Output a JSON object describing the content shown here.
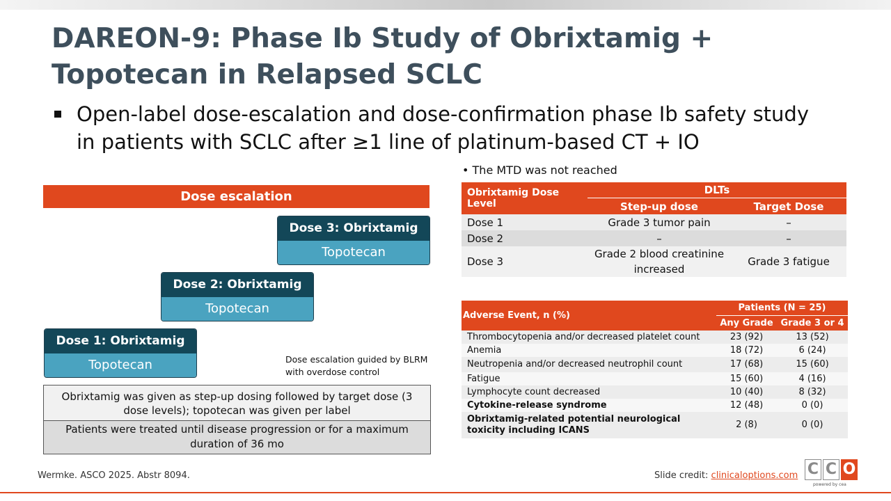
{
  "title": "DAREON-9: Phase Ib Study of Obrixtamig + Topotecan in Relapsed SCLC",
  "bullet": "Open-label dose-escalation and dose-confirmation phase Ib safety study in patients with SCLC after ≥1 line of platinum-based CT + IO",
  "dose_escalation": {
    "header": "Dose escalation",
    "levels": [
      {
        "top": "Dose 1: Obrixtamig",
        "bottom": "Topotecan"
      },
      {
        "top": "Dose 2: Obrixtamig",
        "bottom": "Topotecan"
      },
      {
        "top": "Dose 3: Obrixtamig",
        "bottom": "Topotecan"
      }
    ],
    "note": "Dose escalation guided by BLRM with overdose control",
    "info_row1": "Obrixtamig was given as step-up dosing followed by target dose (3 dose levels); topotecan was given per label",
    "info_row2": "Patients were treated until disease progression or for a maximum duration of 36 mo"
  },
  "mtd_note": "The MTD was not reached",
  "dlt_table": {
    "col_label": "Obrixtamig Dose Level",
    "group_header": "DLTs",
    "sub_headers": [
      "Step-up dose",
      "Target Dose"
    ],
    "rows": [
      {
        "level": "Dose 1",
        "stepup": "Grade 3 tumor pain",
        "target": "–"
      },
      {
        "level": "Dose 2",
        "stepup": "–",
        "target": "–"
      },
      {
        "level": "Dose 3",
        "stepup": "Grade 2 blood creatinine increased",
        "target": "Grade 3 fatigue"
      }
    ]
  },
  "ae_table": {
    "col_label": "Adverse Event, n (%)",
    "group_header": "Patients (N = 25)",
    "sub_headers": [
      "Any Grade",
      "Grade 3 or 4"
    ],
    "rows": [
      {
        "event": "Thrombocytopenia and/or decreased platelet count",
        "any": "23 (92)",
        "g34": "13 (52)"
      },
      {
        "event": "Anemia",
        "any": "18 (72)",
        "g34": "6 (24)"
      },
      {
        "event": "Neutropenia and/or decreased neutrophil count",
        "any": "17 (68)",
        "g34": "15 (60)"
      },
      {
        "event": "Fatigue",
        "any": "15 (60)",
        "g34": "4 (16)"
      },
      {
        "event": "Lymphocyte count decreased",
        "any": "10 (40)",
        "g34": "8 (32)"
      },
      {
        "event": "Cytokine-release syndrome",
        "any": "12 (48)",
        "g34": "0 (0)"
      },
      {
        "event": "Obrixtamig-related potential neurological toxicity including ICANS",
        "any": "2 (8)",
        "g34": "0 (0)"
      }
    ]
  },
  "footer": {
    "citation": "Wermke. ASCO 2025. Abstr 8094.",
    "credit_label": "Slide credit: ",
    "credit_link": "clinicaloptions.com",
    "logo_letters": [
      "C",
      "C",
      "O"
    ],
    "logo_tagline": "powered by cea"
  },
  "colors": {
    "accent": "#e0481e",
    "title": "#3e4f5c",
    "dose_dark": "#134758",
    "dose_light": "#4aa3c0"
  }
}
